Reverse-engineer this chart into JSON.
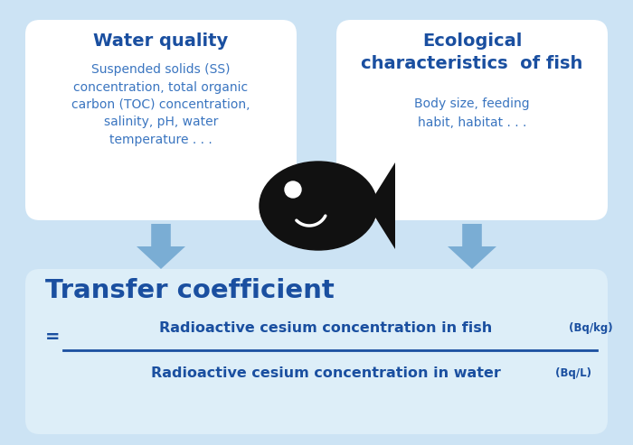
{
  "bg_color": "#cce3f4",
  "box_color": "#ffffff",
  "bottom_box_color": "#ddeef8",
  "text_blue_dark": "#1a4fa0",
  "text_blue_medium": "#3a75c0",
  "arrow_color": "#7aadd4",
  "fish_color": "#111111",
  "water_quality_title": "Water quality",
  "water_quality_body": "Suspended solids (SS)\nconcentration, total organic\ncarbon (TOC) concentration,\nsalinity, pH, water\ntemperature . . .",
  "eco_title": "Ecological\ncharacteristics  of fish",
  "eco_body": "Body size, feeding\nhabit, habitat . . .",
  "tc_title": "Transfer coefficient",
  "tc_numerator": "Radioactive cesium concentration in fish",
  "tc_numerator_unit": " (Bq/kg)",
  "tc_denominator": "Radioactive cesium concentration in water",
  "tc_denominator_unit": " (Bq/L)",
  "figw": 7.0,
  "figh": 4.93,
  "dpi": 100
}
